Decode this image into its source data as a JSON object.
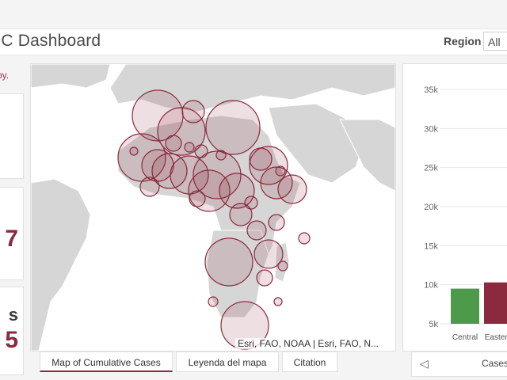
{
  "header": {
    "title": "DC Dashboard",
    "region_label": "Region",
    "region_value": "All"
  },
  "left_panel": {
    "note": "by.",
    "glyphs": [
      "7",
      "s",
      "5"
    ]
  },
  "map": {
    "attribution": "Esri, FAO, NOAA | Esri, FAO, N...",
    "bubble_color": "#8b2a3e",
    "land_color": "#d6d6d6"
  },
  "tabs": [
    {
      "label": "Map of Cumulative Cases",
      "active": true
    },
    {
      "label": "Leyenda del mapa",
      "active": false
    },
    {
      "label": "Citation",
      "active": false
    }
  ],
  "chart_footer": {
    "label": "Cases"
  },
  "chart_data": {
    "type": "bar",
    "categories": [
      "Central",
      "Eastern"
    ],
    "values": [
      9500,
      10300
    ],
    "colors": [
      "#4e9a4b",
      "#8b2a3e"
    ],
    "yticks": [
      "35k",
      "30k",
      "25k",
      "20k",
      "15k",
      "10k",
      "5k"
    ],
    "ylim": [
      5000,
      35000
    ],
    "grid": true
  }
}
